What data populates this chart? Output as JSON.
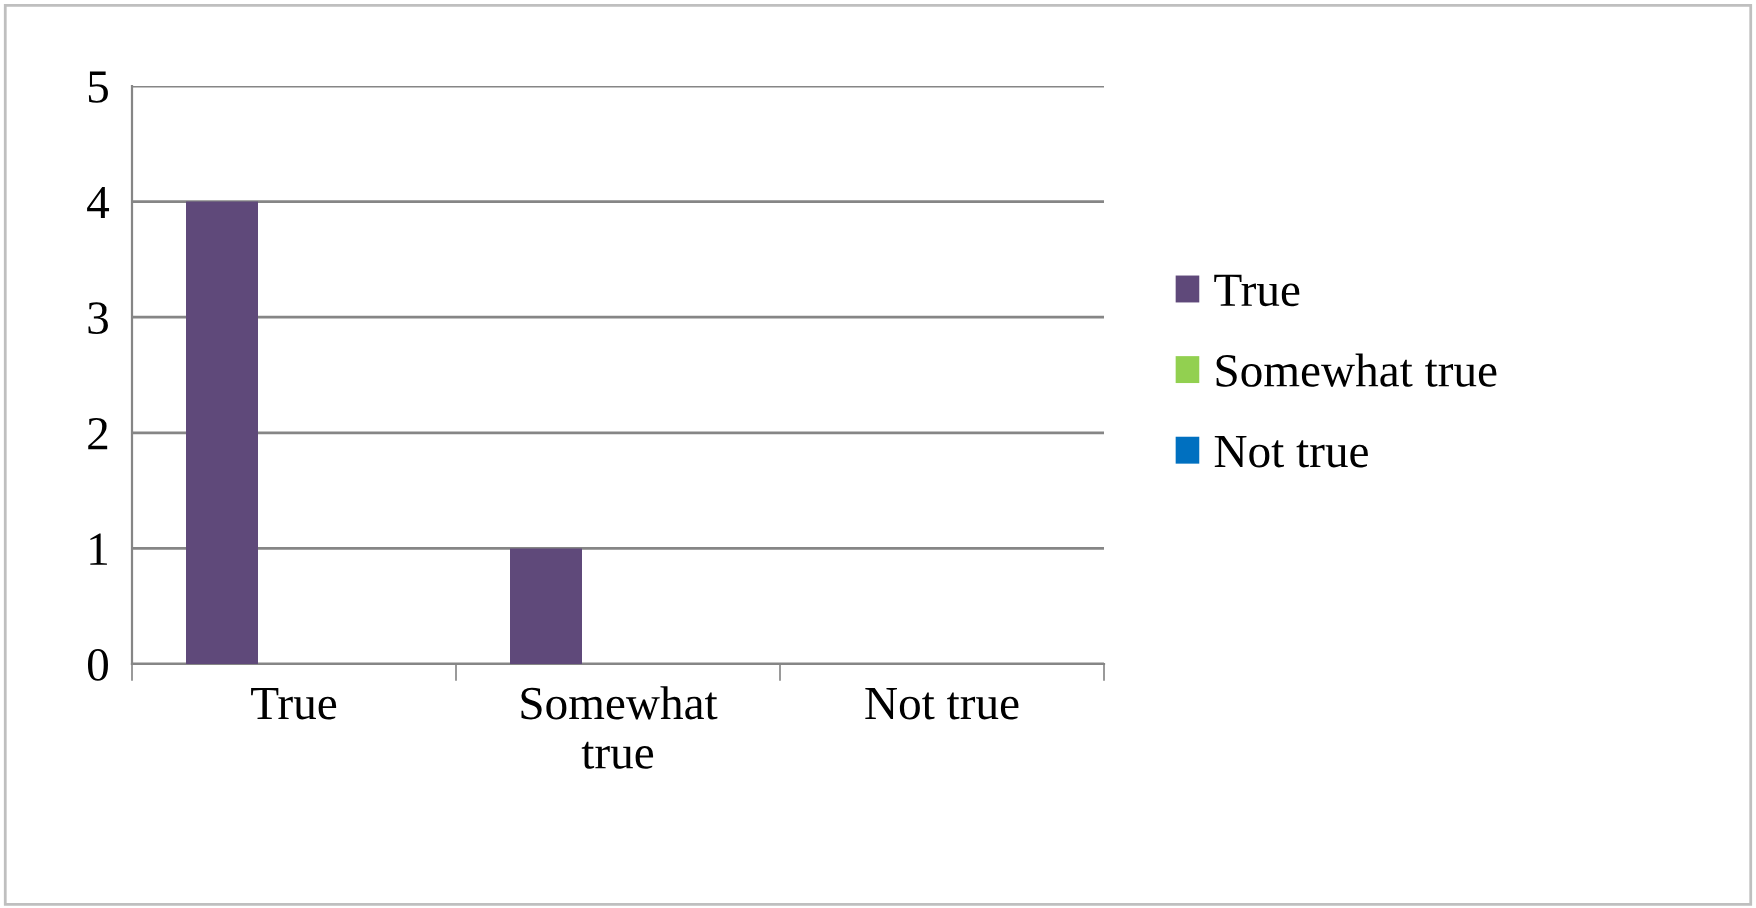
{
  "chart_data": {
    "type": "bar",
    "categories": [
      "True",
      "Somewhat true",
      "Not true"
    ],
    "series": [
      {
        "name": "True",
        "color": "#5f497a",
        "values": [
          4,
          1,
          0
        ]
      },
      {
        "name": "Somewhat true",
        "color": "#92d050",
        "values": [
          0,
          0,
          0
        ]
      },
      {
        "name": "Not true",
        "color": "#0070c0",
        "values": [
          0,
          0,
          0
        ]
      }
    ],
    "ylim": [
      0,
      5
    ],
    "yticks": [
      0,
      1,
      2,
      3,
      4,
      5
    ],
    "grid": "y",
    "legend": "right"
  }
}
